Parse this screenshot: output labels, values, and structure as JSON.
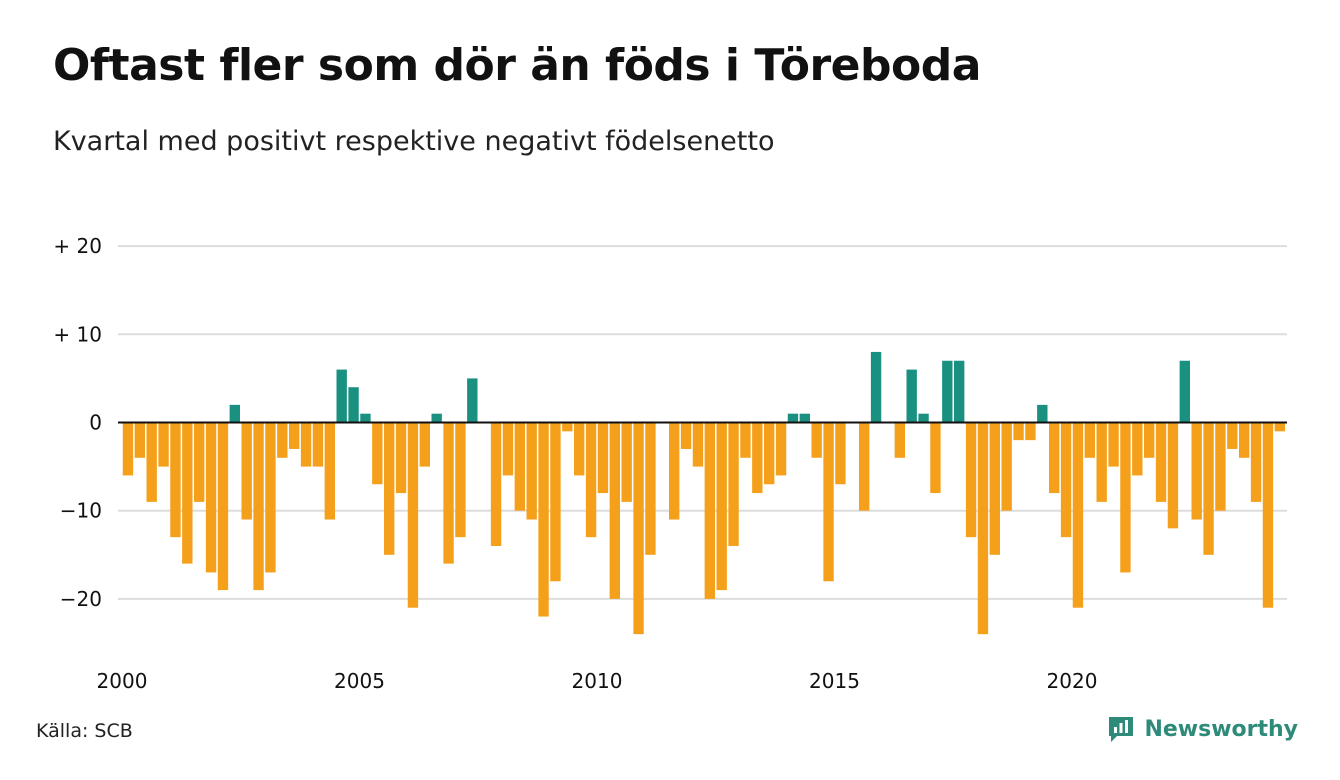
{
  "title": "Oftast fler som dör än föds i Töreboda",
  "subtitle": "Kvartal med positivt respektive negativt födelsenetto",
  "source": "Källa: SCB",
  "brand": "Newsworthy",
  "colors": {
    "positive": "#1a9080",
    "negative": "#f5a01a",
    "grid": "#dddddd",
    "zero": "#111111",
    "brand": "#2e8b7a"
  },
  "chart_data": {
    "type": "bar",
    "x_start": 2000,
    "x_end": 2024.75,
    "quarters_per_year": 4,
    "first_quarter": "2000 Q1",
    "ylim": [
      -25,
      22
    ],
    "yticks": [
      20,
      10,
      0,
      -10,
      -20
    ],
    "ytick_labels": [
      "+ 20",
      "+ 10",
      "0",
      "−10",
      "−20"
    ],
    "xticks": [
      2000,
      2005,
      2010,
      2015,
      2020
    ],
    "xtick_labels": [
      "2000",
      "2005",
      "2010",
      "2015",
      "2020"
    ],
    "grid": true,
    "values": [
      -6,
      -4,
      -9,
      -5,
      -13,
      -16,
      -9,
      -17,
      -19,
      2,
      -11,
      -19,
      -17,
      -4,
      -3,
      -5,
      -5,
      -11,
      6,
      4,
      1,
      -7,
      -15,
      -8,
      -21,
      -5,
      1,
      -16,
      -13,
      5,
      0,
      -14,
      -6,
      -10,
      -11,
      -22,
      -18,
      -1,
      -6,
      -13,
      -8,
      -20,
      -9,
      -24,
      -15,
      0,
      -11,
      -3,
      -5,
      -20,
      -19,
      -14,
      -4,
      -8,
      -7,
      -6,
      1,
      1,
      -4,
      -18,
      -7,
      0,
      -10,
      8,
      0,
      -4,
      6,
      1,
      -8,
      7,
      7,
      -13,
      -24,
      -15,
      -10,
      -2,
      -2,
      2,
      -8,
      -13,
      -21,
      -4,
      -9,
      -5,
      -17,
      -6,
      -4,
      -9,
      -12,
      7,
      -11,
      -15,
      -10,
      -3,
      -4,
      -9,
      -21,
      -1
    ]
  }
}
